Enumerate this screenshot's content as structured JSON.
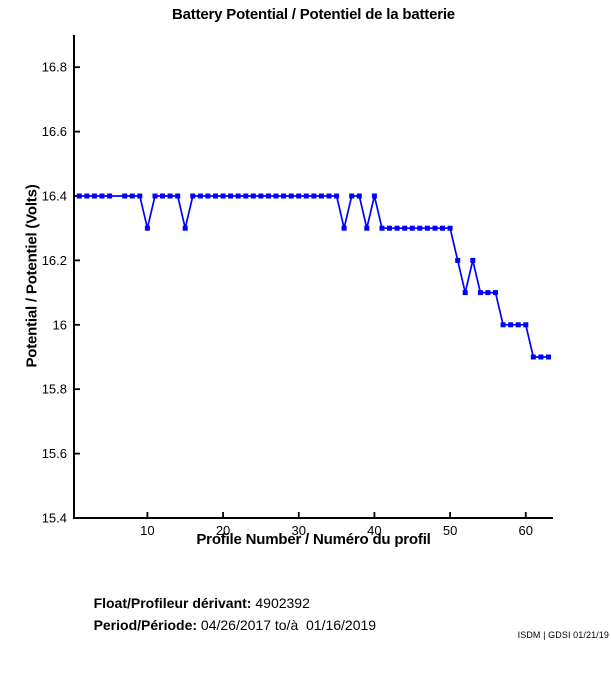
{
  "chart_data": {
    "type": "line",
    "title": "Battery Potential / Potentiel de la batterie",
    "xlabel": "Profile Number / Numéro du profil",
    "ylabel": "Potential / Potentiel (Volts)",
    "x": [
      1,
      2,
      3,
      4,
      5,
      6,
      7,
      8,
      9,
      10,
      11,
      12,
      13,
      14,
      15,
      16,
      17,
      18,
      19,
      20,
      21,
      22,
      23,
      24,
      25,
      26,
      27,
      28,
      29,
      30,
      31,
      32,
      33,
      34,
      35,
      36,
      37,
      38,
      39,
      40,
      41,
      42,
      43,
      44,
      45,
      46,
      47,
      48,
      49,
      50,
      51,
      52,
      53,
      54,
      55,
      56,
      57,
      58,
      59,
      60,
      61,
      62,
      63
    ],
    "values": [
      16.4,
      16.4,
      16.4,
      16.4,
      16.4,
      16.4,
      16.4,
      16.4,
      16.4,
      16.3,
      16.4,
      16.4,
      16.4,
      16.4,
      16.3,
      16.4,
      16.4,
      16.4,
      16.4,
      16.4,
      16.4,
      16.4,
      16.4,
      16.4,
      16.4,
      16.4,
      16.4,
      16.4,
      16.4,
      16.4,
      16.4,
      16.4,
      16.4,
      16.4,
      16.4,
      16.3,
      16.4,
      16.4,
      16.3,
      16.4,
      16.3,
      16.3,
      16.3,
      16.3,
      16.3,
      16.3,
      16.3,
      16.3,
      16.3,
      16.3,
      16.2,
      16.1,
      16.2,
      16.1,
      16.1,
      16.1,
      16.0,
      16.0,
      16.0,
      16.0,
      15.9,
      15.9,
      15.9
    ],
    "markers_absent_at_x": [
      6
    ],
    "line_color": "#0000ff",
    "marker": "filled-square",
    "xlim": [
      0.3,
      63.6
    ],
    "ylim": [
      15.4,
      16.9
    ],
    "xticks": [
      10,
      20,
      30,
      40,
      50,
      60
    ],
    "yticks": [
      15.4,
      15.6,
      15.8,
      16,
      16.2,
      16.4,
      16.6,
      16.8
    ],
    "grid": false,
    "legend": "none",
    "axis_color": "#000000"
  },
  "footer": {
    "float_label": "Float/Profileur dérivant:",
    "float_value": " 4902392",
    "period_label": "Period/Période:",
    "period_value": " 04/26/2017 to/à  01/16/2019"
  },
  "credit": "ISDM | GDSI 01/21/19"
}
